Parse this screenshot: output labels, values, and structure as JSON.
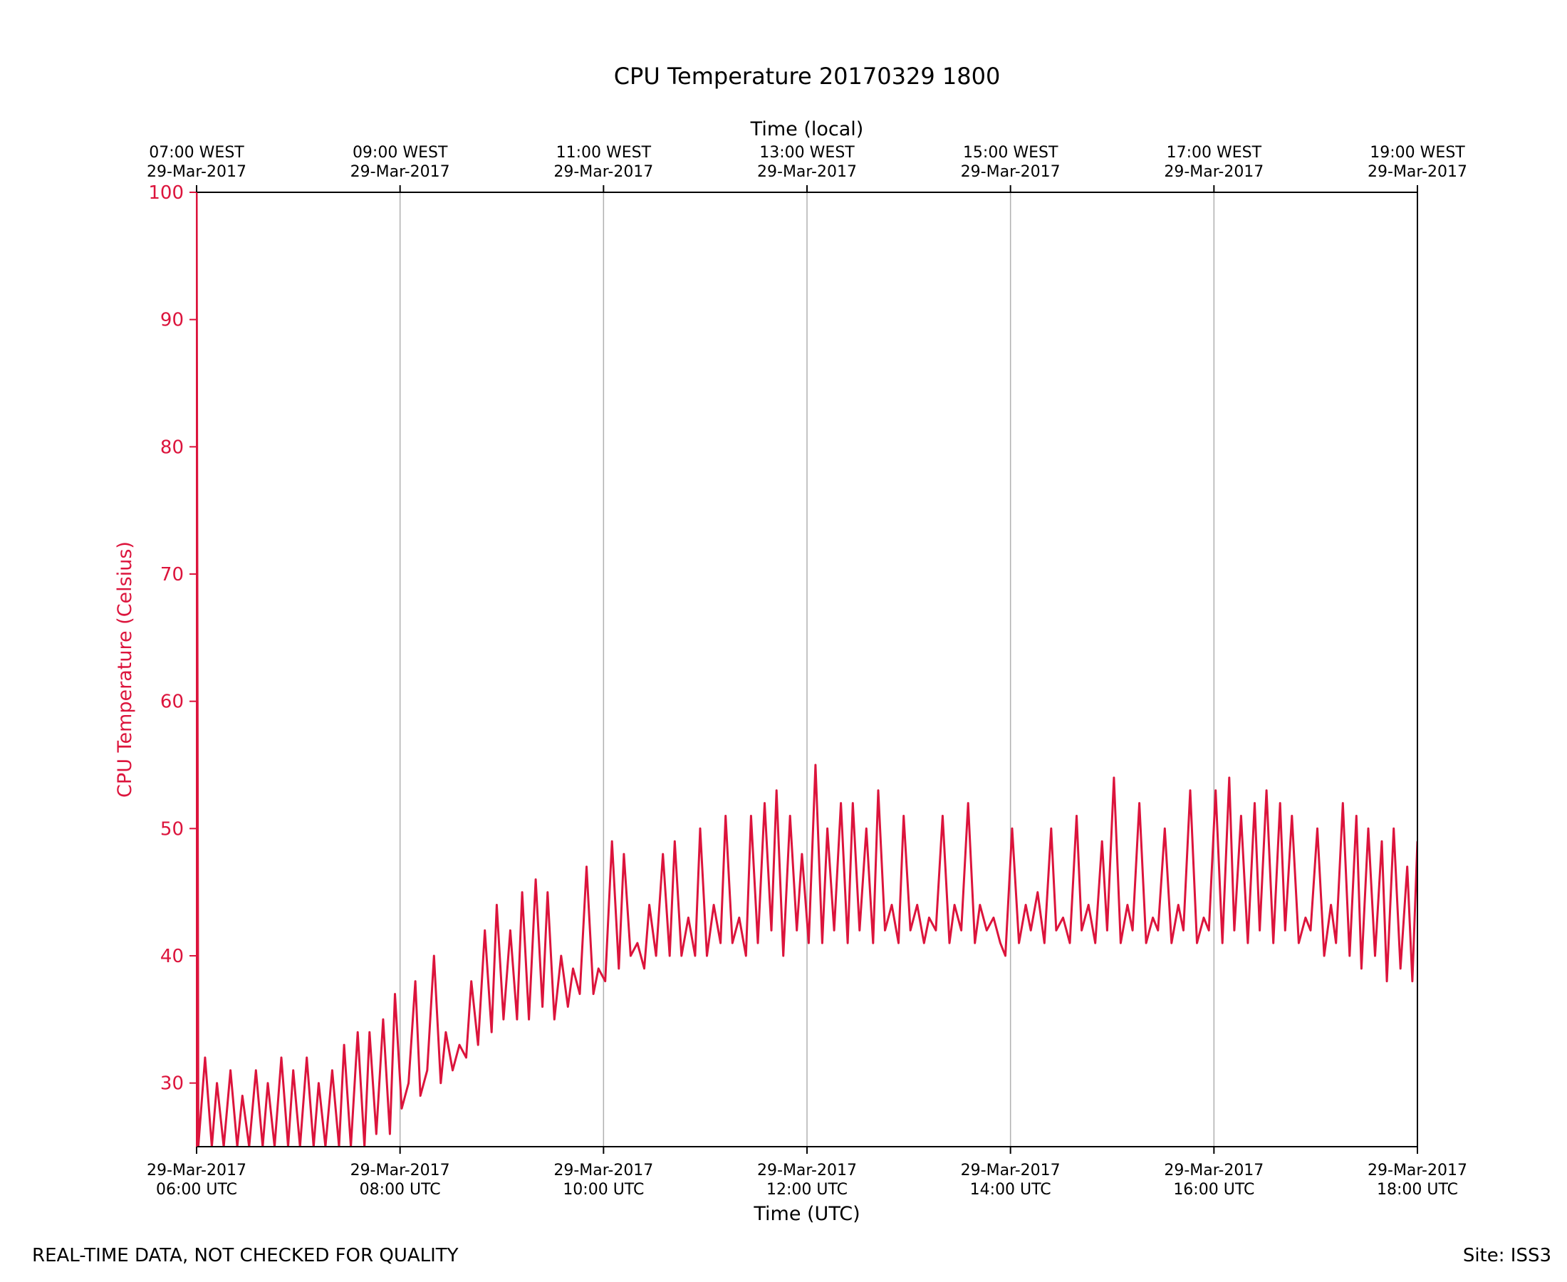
{
  "colors": {
    "series": "#dc143c",
    "grid": "#b0b0b0",
    "axis": "#000000"
  },
  "chart_data": {
    "type": "line",
    "title": "CPU Temperature 20170329 1800",
    "xlabel": "Time (UTC)",
    "x2label": "Time (local)",
    "ylabel": "CPU Temperature (Celsius)",
    "ylim": [
      25,
      100
    ],
    "xlim": [
      "2017-03-29 06:00",
      "2017-03-29 18:00"
    ],
    "grid": "vertical",
    "yticks": [
      30,
      40,
      50,
      60,
      70,
      80,
      90,
      100
    ],
    "xticks": [
      {
        "x": "2017-03-29 06:00",
        "line1": "29-Mar-2017",
        "line2": "06:00 UTC"
      },
      {
        "x": "2017-03-29 08:00",
        "line1": "29-Mar-2017",
        "line2": "08:00 UTC"
      },
      {
        "x": "2017-03-29 10:00",
        "line1": "29-Mar-2017",
        "line2": "10:00 UTC"
      },
      {
        "x": "2017-03-29 12:00",
        "line1": "29-Mar-2017",
        "line2": "12:00 UTC"
      },
      {
        "x": "2017-03-29 14:00",
        "line1": "29-Mar-2017",
        "line2": "14:00 UTC"
      },
      {
        "x": "2017-03-29 16:00",
        "line1": "29-Mar-2017",
        "line2": "16:00 UTC"
      },
      {
        "x": "2017-03-29 18:00",
        "line1": "29-Mar-2017",
        "line2": "18:00 UTC"
      }
    ],
    "x2ticks": [
      {
        "x": "2017-03-29 06:00",
        "line1": "07:00 WEST",
        "line2": "29-Mar-2017"
      },
      {
        "x": "2017-03-29 08:00",
        "line1": "09:00 WEST",
        "line2": "29-Mar-2017"
      },
      {
        "x": "2017-03-29 10:00",
        "line1": "11:00 WEST",
        "line2": "29-Mar-2017"
      },
      {
        "x": "2017-03-29 12:00",
        "line1": "13:00 WEST",
        "line2": "29-Mar-2017"
      },
      {
        "x": "2017-03-29 14:00",
        "line1": "15:00 WEST",
        "line2": "29-Mar-2017"
      },
      {
        "x": "2017-03-29 16:00",
        "line1": "17:00 WEST",
        "line2": "29-Mar-2017"
      },
      {
        "x": "2017-03-29 18:00",
        "line1": "19:00 WEST",
        "line2": "29-Mar-2017"
      }
    ],
    "series": [
      {
        "points": [
          [
            "2017-03-29 06:00",
            100
          ],
          [
            "2017-03-29 06:01",
            25
          ],
          [
            "2017-03-29 06:05",
            32
          ],
          [
            "2017-03-29 06:09",
            25
          ],
          [
            "2017-03-29 06:12",
            30
          ],
          [
            "2017-03-29 06:16",
            25
          ],
          [
            "2017-03-29 06:20",
            31
          ],
          [
            "2017-03-29 06:24",
            25
          ],
          [
            "2017-03-29 06:27",
            29
          ],
          [
            "2017-03-29 06:31",
            25
          ],
          [
            "2017-03-29 06:35",
            31
          ],
          [
            "2017-03-29 06:39",
            25
          ],
          [
            "2017-03-29 06:42",
            30
          ],
          [
            "2017-03-29 06:46",
            25
          ],
          [
            "2017-03-29 06:50",
            32
          ],
          [
            "2017-03-29 06:54",
            25
          ],
          [
            "2017-03-29 06:57",
            31
          ],
          [
            "2017-03-29 07:01",
            25
          ],
          [
            "2017-03-29 07:05",
            32
          ],
          [
            "2017-03-29 07:09",
            25
          ],
          [
            "2017-03-29 07:12",
            30
          ],
          [
            "2017-03-29 07:16",
            25
          ],
          [
            "2017-03-29 07:20",
            31
          ],
          [
            "2017-03-29 07:24",
            25
          ],
          [
            "2017-03-29 07:27",
            33
          ],
          [
            "2017-03-29 07:31",
            25
          ],
          [
            "2017-03-29 07:35",
            34
          ],
          [
            "2017-03-29 07:39",
            25
          ],
          [
            "2017-03-29 07:42",
            34
          ],
          [
            "2017-03-29 07:46",
            26
          ],
          [
            "2017-03-29 07:50",
            35
          ],
          [
            "2017-03-29 07:54",
            26
          ],
          [
            "2017-03-29 07:57",
            37
          ],
          [
            "2017-03-29 08:01",
            28
          ],
          [
            "2017-03-29 08:05",
            30
          ],
          [
            "2017-03-29 08:09",
            38
          ],
          [
            "2017-03-29 08:12",
            29
          ],
          [
            "2017-03-29 08:16",
            31
          ],
          [
            "2017-03-29 08:20",
            40
          ],
          [
            "2017-03-29 08:24",
            30
          ],
          [
            "2017-03-29 08:27",
            34
          ],
          [
            "2017-03-29 08:31",
            31
          ],
          [
            "2017-03-29 08:35",
            33
          ],
          [
            "2017-03-29 08:39",
            32
          ],
          [
            "2017-03-29 08:42",
            38
          ],
          [
            "2017-03-29 08:46",
            33
          ],
          [
            "2017-03-29 08:50",
            42
          ],
          [
            "2017-03-29 08:54",
            34
          ],
          [
            "2017-03-29 08:57",
            44
          ],
          [
            "2017-03-29 09:01",
            35
          ],
          [
            "2017-03-29 09:05",
            42
          ],
          [
            "2017-03-29 09:09",
            35
          ],
          [
            "2017-03-29 09:12",
            45
          ],
          [
            "2017-03-29 09:16",
            35
          ],
          [
            "2017-03-29 09:20",
            46
          ],
          [
            "2017-03-29 09:24",
            36
          ],
          [
            "2017-03-29 09:27",
            45
          ],
          [
            "2017-03-29 09:31",
            35
          ],
          [
            "2017-03-29 09:35",
            40
          ],
          [
            "2017-03-29 09:39",
            36
          ],
          [
            "2017-03-29 09:42",
            39
          ],
          [
            "2017-03-29 09:46",
            37
          ],
          [
            "2017-03-29 09:50",
            47
          ],
          [
            "2017-03-29 09:54",
            37
          ],
          [
            "2017-03-29 09:57",
            39
          ],
          [
            "2017-03-29 10:01",
            38
          ],
          [
            "2017-03-29 10:05",
            49
          ],
          [
            "2017-03-29 10:09",
            39
          ],
          [
            "2017-03-29 10:12",
            48
          ],
          [
            "2017-03-29 10:16",
            40
          ],
          [
            "2017-03-29 10:20",
            41
          ],
          [
            "2017-03-29 10:24",
            39
          ],
          [
            "2017-03-29 10:27",
            44
          ],
          [
            "2017-03-29 10:31",
            40
          ],
          [
            "2017-03-29 10:35",
            48
          ],
          [
            "2017-03-29 10:39",
            40
          ],
          [
            "2017-03-29 10:42",
            49
          ],
          [
            "2017-03-29 10:46",
            40
          ],
          [
            "2017-03-29 10:50",
            43
          ],
          [
            "2017-03-29 10:54",
            40
          ],
          [
            "2017-03-29 10:57",
            50
          ],
          [
            "2017-03-29 11:01",
            40
          ],
          [
            "2017-03-29 11:05",
            44
          ],
          [
            "2017-03-29 11:09",
            41
          ],
          [
            "2017-03-29 11:12",
            51
          ],
          [
            "2017-03-29 11:16",
            41
          ],
          [
            "2017-03-29 11:20",
            43
          ],
          [
            "2017-03-29 11:24",
            40
          ],
          [
            "2017-03-29 11:27",
            51
          ],
          [
            "2017-03-29 11:31",
            41
          ],
          [
            "2017-03-29 11:35",
            52
          ],
          [
            "2017-03-29 11:39",
            42
          ],
          [
            "2017-03-29 11:42",
            53
          ],
          [
            "2017-03-29 11:46",
            40
          ],
          [
            "2017-03-29 11:50",
            51
          ],
          [
            "2017-03-29 11:54",
            42
          ],
          [
            "2017-03-29 11:57",
            48
          ],
          [
            "2017-03-29 12:01",
            41
          ],
          [
            "2017-03-29 12:05",
            55
          ],
          [
            "2017-03-29 12:09",
            41
          ],
          [
            "2017-03-29 12:12",
            50
          ],
          [
            "2017-03-29 12:16",
            42
          ],
          [
            "2017-03-29 12:20",
            52
          ],
          [
            "2017-03-29 12:24",
            41
          ],
          [
            "2017-03-29 12:27",
            52
          ],
          [
            "2017-03-29 12:31",
            42
          ],
          [
            "2017-03-29 12:35",
            50
          ],
          [
            "2017-03-29 12:39",
            41
          ],
          [
            "2017-03-29 12:42",
            53
          ],
          [
            "2017-03-29 12:46",
            42
          ],
          [
            "2017-03-29 12:50",
            44
          ],
          [
            "2017-03-29 12:54",
            41
          ],
          [
            "2017-03-29 12:57",
            51
          ],
          [
            "2017-03-29 13:01",
            42
          ],
          [
            "2017-03-29 13:05",
            44
          ],
          [
            "2017-03-29 13:09",
            41
          ],
          [
            "2017-03-29 13:12",
            43
          ],
          [
            "2017-03-29 13:16",
            42
          ],
          [
            "2017-03-29 13:20",
            51
          ],
          [
            "2017-03-29 13:24",
            41
          ],
          [
            "2017-03-29 13:27",
            44
          ],
          [
            "2017-03-29 13:31",
            42
          ],
          [
            "2017-03-29 13:35",
            52
          ],
          [
            "2017-03-29 13:39",
            41
          ],
          [
            "2017-03-29 13:42",
            44
          ],
          [
            "2017-03-29 13:46",
            42
          ],
          [
            "2017-03-29 13:50",
            43
          ],
          [
            "2017-03-29 13:54",
            41
          ],
          [
            "2017-03-29 13:57",
            40
          ],
          [
            "2017-03-29 14:01",
            50
          ],
          [
            "2017-03-29 14:05",
            41
          ],
          [
            "2017-03-29 14:09",
            44
          ],
          [
            "2017-03-29 14:12",
            42
          ],
          [
            "2017-03-29 14:16",
            45
          ],
          [
            "2017-03-29 14:20",
            41
          ],
          [
            "2017-03-29 14:24",
            50
          ],
          [
            "2017-03-29 14:27",
            42
          ],
          [
            "2017-03-29 14:31",
            43
          ],
          [
            "2017-03-29 14:35",
            41
          ],
          [
            "2017-03-29 14:39",
            51
          ],
          [
            "2017-03-29 14:42",
            42
          ],
          [
            "2017-03-29 14:46",
            44
          ],
          [
            "2017-03-29 14:50",
            41
          ],
          [
            "2017-03-29 14:54",
            49
          ],
          [
            "2017-03-29 14:57",
            42
          ],
          [
            "2017-03-29 15:01",
            54
          ],
          [
            "2017-03-29 15:05",
            41
          ],
          [
            "2017-03-29 15:09",
            44
          ],
          [
            "2017-03-29 15:12",
            42
          ],
          [
            "2017-03-29 15:16",
            52
          ],
          [
            "2017-03-29 15:20",
            41
          ],
          [
            "2017-03-29 15:24",
            43
          ],
          [
            "2017-03-29 15:27",
            42
          ],
          [
            "2017-03-29 15:31",
            50
          ],
          [
            "2017-03-29 15:35",
            41
          ],
          [
            "2017-03-29 15:39",
            44
          ],
          [
            "2017-03-29 15:42",
            42
          ],
          [
            "2017-03-29 15:46",
            53
          ],
          [
            "2017-03-29 15:50",
            41
          ],
          [
            "2017-03-29 15:54",
            43
          ],
          [
            "2017-03-29 15:57",
            42
          ],
          [
            "2017-03-29 16:01",
            53
          ],
          [
            "2017-03-29 16:05",
            41
          ],
          [
            "2017-03-29 16:09",
            54
          ],
          [
            "2017-03-29 16:12",
            42
          ],
          [
            "2017-03-29 16:16",
            51
          ],
          [
            "2017-03-29 16:20",
            41
          ],
          [
            "2017-03-29 16:24",
            52
          ],
          [
            "2017-03-29 16:27",
            42
          ],
          [
            "2017-03-29 16:31",
            53
          ],
          [
            "2017-03-29 16:35",
            41
          ],
          [
            "2017-03-29 16:39",
            52
          ],
          [
            "2017-03-29 16:42",
            42
          ],
          [
            "2017-03-29 16:46",
            51
          ],
          [
            "2017-03-29 16:50",
            41
          ],
          [
            "2017-03-29 16:54",
            43
          ],
          [
            "2017-03-29 16:57",
            42
          ],
          [
            "2017-03-29 17:01",
            50
          ],
          [
            "2017-03-29 17:05",
            40
          ],
          [
            "2017-03-29 17:09",
            44
          ],
          [
            "2017-03-29 17:12",
            41
          ],
          [
            "2017-03-29 17:16",
            52
          ],
          [
            "2017-03-29 17:20",
            40
          ],
          [
            "2017-03-29 17:24",
            51
          ],
          [
            "2017-03-29 17:27",
            39
          ],
          [
            "2017-03-29 17:31",
            50
          ],
          [
            "2017-03-29 17:35",
            40
          ],
          [
            "2017-03-29 17:39",
            49
          ],
          [
            "2017-03-29 17:42",
            38
          ],
          [
            "2017-03-29 17:46",
            50
          ],
          [
            "2017-03-29 17:50",
            39
          ],
          [
            "2017-03-29 17:54",
            47
          ],
          [
            "2017-03-29 17:57",
            38
          ],
          [
            "2017-03-29 18:00",
            49
          ]
        ]
      }
    ]
  },
  "footer": {
    "left": "REAL-TIME DATA, NOT CHECKED FOR QUALITY",
    "right": "Site: ISS3"
  }
}
